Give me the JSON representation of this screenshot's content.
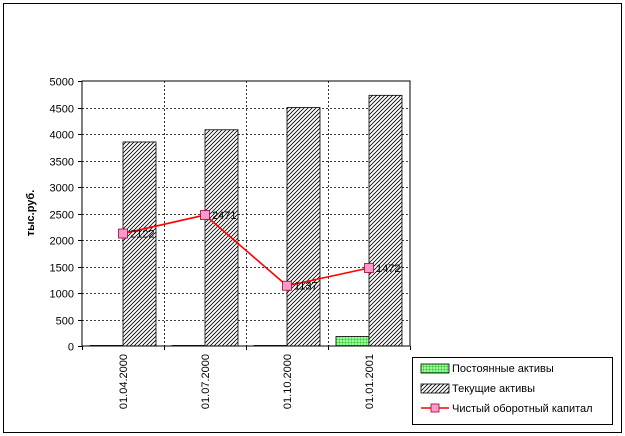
{
  "chart_data": {
    "type": "bar",
    "title": "",
    "xlabel": "",
    "ylabel": "тыс.руб.",
    "categories": [
      "01.04.2000",
      "01.07.2000",
      "01.10.2000",
      "01.01.2001"
    ],
    "ylim": [
      0,
      5000
    ],
    "yticks": [
      0,
      500,
      1000,
      1500,
      2000,
      2500,
      3000,
      3500,
      4000,
      4500,
      5000
    ],
    "grid": true,
    "legend_position": "bottom-right",
    "series": [
      {
        "name": "Постоянные активы",
        "kind": "bar",
        "values": [
          10,
          10,
          10,
          180
        ],
        "color": "#99ff99"
      },
      {
        "name": "Текущие активы",
        "kind": "bar",
        "values": [
          3850,
          4080,
          4500,
          4730
        ],
        "color": "#ffffff"
      },
      {
        "name": "Чистый оборотный капитал",
        "kind": "line",
        "values": [
          2122,
          2471,
          1137,
          1472
        ],
        "color": "#ff0000",
        "marker_color": "#ff99cc",
        "data_labels": [
          "2122",
          "2471",
          "1137",
          "1472"
        ]
      }
    ]
  }
}
